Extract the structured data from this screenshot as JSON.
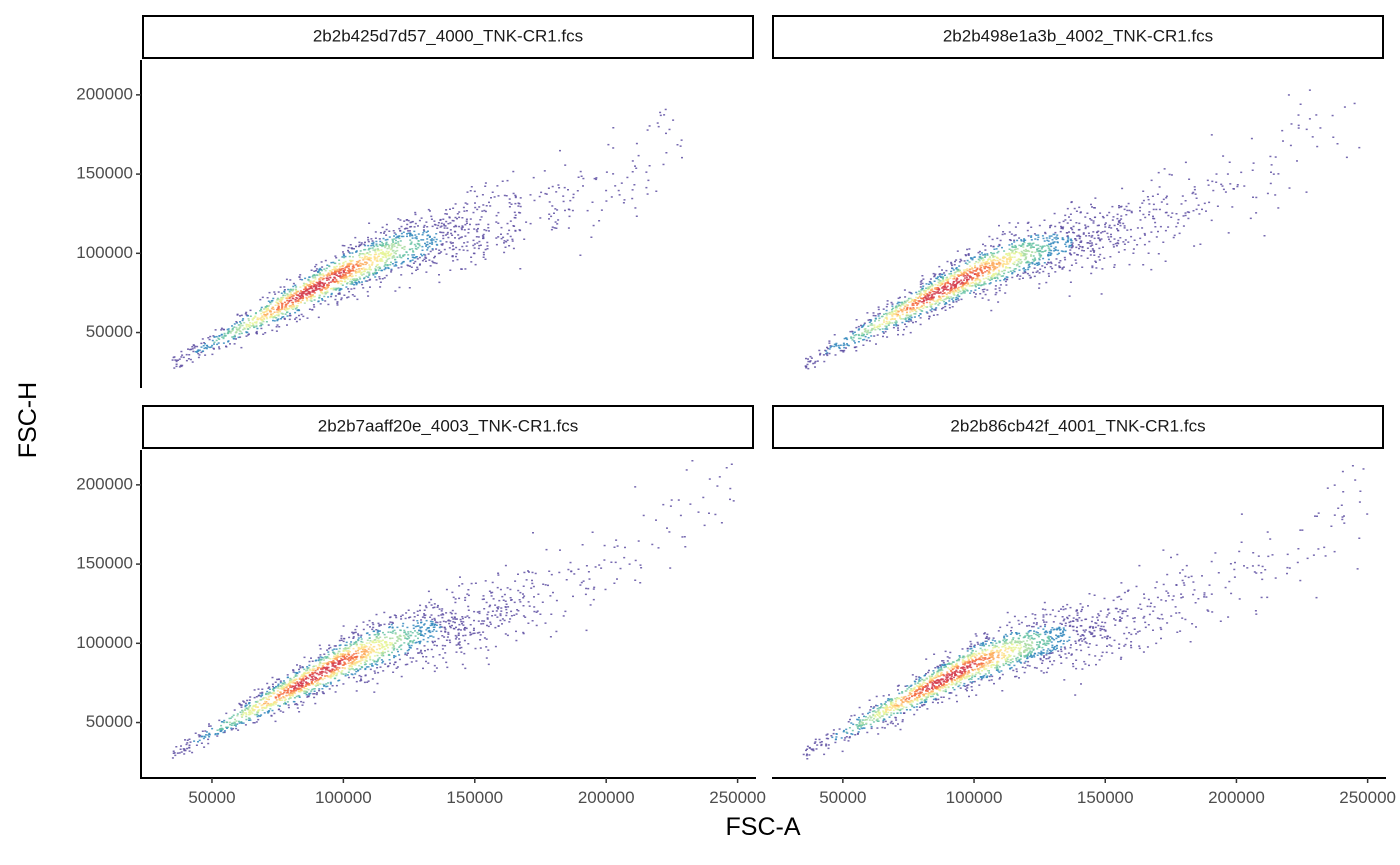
{
  "chart_data": {
    "type": "scatter",
    "style": "faceted density scatter (hexbin-like), color encodes point density",
    "xlabel": "FSC-A",
    "ylabel": "FSC-H",
    "xlim": [
      23000,
      257000
    ],
    "ylim": [
      15000,
      222000
    ],
    "x_ticks": [
      50000,
      100000,
      150000,
      200000,
      250000
    ],
    "y_ticks": [
      50000,
      100000,
      150000,
      200000
    ],
    "x_tick_labels": [
      "50000",
      "100000",
      "150000",
      "200000",
      "250000"
    ],
    "y_tick_labels": [
      "50000",
      "100000",
      "150000",
      "200000"
    ],
    "grid": false,
    "legend": "none",
    "density_colors": [
      "#5e4fa2",
      "#3288bd",
      "#66c2a5",
      "#abdda4",
      "#e6f598",
      "#fee08b",
      "#fdae61",
      "#f46d43",
      "#d53e4f"
    ],
    "panels": [
      {
        "title": "2b2b425d7d57_4000_TNK-CR1.fcs",
        "points": [
          [
            35000,
            30000
          ],
          [
            60000,
            52000
          ],
          [
            80000,
            70000
          ],
          [
            100000,
            88000
          ],
          [
            120000,
            102000
          ],
          [
            150000,
            115000
          ],
          [
            180000,
            130000
          ],
          [
            210000,
            150000
          ],
          [
            230000,
            180000
          ]
        ]
      },
      {
        "title": "2b2b498e1a3b_4002_TNK-CR1.fcs",
        "points": [
          [
            35000,
            30000
          ],
          [
            60000,
            52000
          ],
          [
            80000,
            70000
          ],
          [
            100000,
            87000
          ],
          [
            120000,
            100000
          ],
          [
            150000,
            112000
          ],
          [
            180000,
            128000
          ],
          [
            210000,
            150000
          ],
          [
            250000,
            195000
          ]
        ]
      },
      {
        "title": "2b2b7aaff20e_4003_TNK-CR1.fcs",
        "points": [
          [
            35000,
            30000
          ],
          [
            60000,
            53000
          ],
          [
            80000,
            71000
          ],
          [
            100000,
            89000
          ],
          [
            120000,
            102000
          ],
          [
            150000,
            115000
          ],
          [
            180000,
            132000
          ],
          [
            210000,
            160000
          ],
          [
            250000,
            196000
          ]
        ]
      },
      {
        "title": "2b2b86cb42f_4001_TNK-CR1.fcs",
        "points": [
          [
            35000,
            30000
          ],
          [
            60000,
            52000
          ],
          [
            80000,
            70000
          ],
          [
            100000,
            87000
          ],
          [
            120000,
            99000
          ],
          [
            150000,
            110000
          ],
          [
            180000,
            125000
          ],
          [
            210000,
            150000
          ],
          [
            250000,
            190000
          ]
        ]
      }
    ]
  }
}
